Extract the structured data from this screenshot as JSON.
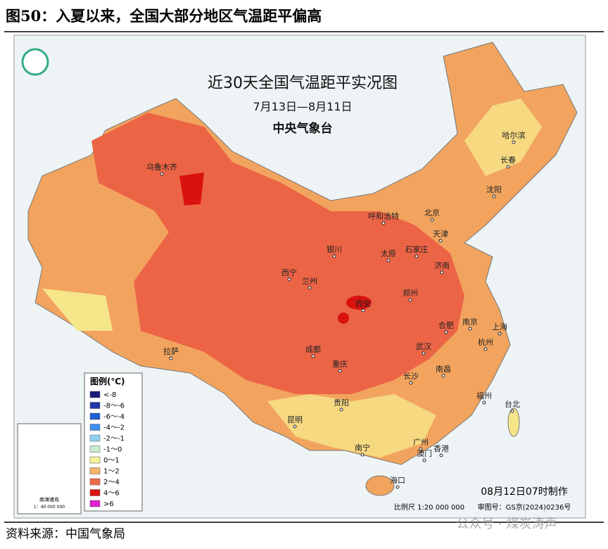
{
  "header": {
    "title": "图50：入夏以来，全国大部分地区气温距平偏高"
  },
  "map": {
    "title": "近30天全国气温距平实况图",
    "date_range": "7月13日—8月11日",
    "agency": "中央气象台",
    "cities": [
      "乌鲁木齐",
      "哈尔滨",
      "长春",
      "沈阳",
      "呼和浩特",
      "北京",
      "天津",
      "银川",
      "太原",
      "石家庄",
      "济南",
      "西宁",
      "兰州",
      "西安",
      "郑州",
      "拉萨",
      "成都",
      "重庆",
      "合肥",
      "南京",
      "上海",
      "武汉",
      "杭州",
      "南昌",
      "长沙",
      "福州",
      "台北",
      "贵阳",
      "昆明",
      "广州",
      "南宁",
      "澳门",
      "香港",
      "海口"
    ],
    "legend": {
      "title": "图例(℃)",
      "items": [
        {
          "label": "<-8",
          "color": "#1a1a7a"
        },
        {
          "label": "-8～-6",
          "color": "#2336a8"
        },
        {
          "label": "-6～-4",
          "color": "#1f5fd6"
        },
        {
          "label": "-4～-2",
          "color": "#3f8ff0"
        },
        {
          "label": "-2～-1",
          "color": "#8fd0f0"
        },
        {
          "label": "-1～0",
          "color": "#c8ecd0"
        },
        {
          "label": "0～1",
          "color": "#f6f09a"
        },
        {
          "label": "1～2",
          "color": "#f3b567"
        },
        {
          "label": "2～4",
          "color": "#ee6a48"
        },
        {
          "label": "4～6",
          "color": "#d9120f"
        },
        {
          "label": ">6",
          "color": "#e020d0"
        }
      ]
    },
    "made": "08月12日07时制作",
    "scale": "比例尺 1:20 000 000",
    "review": "审图号：GS京(2024)0236号",
    "inset": {
      "label": "南海诸岛",
      "scale": "1：40 000 000"
    }
  },
  "source": "资料来源：中国气象局",
  "watermark": "公众号 · 煤炭涛声"
}
